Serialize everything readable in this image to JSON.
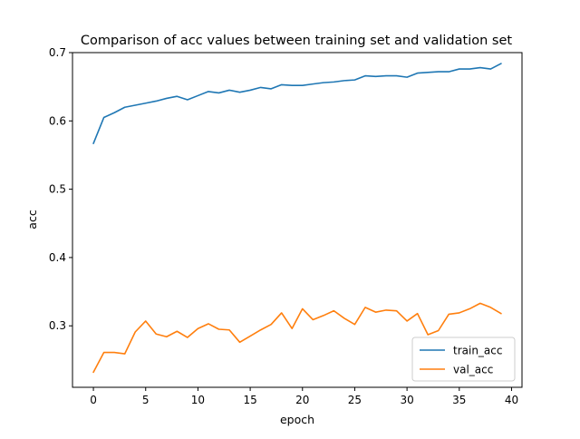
{
  "chart_data": {
    "type": "line",
    "title": "Comparison of acc values between training set and validation set",
    "xlabel": "epoch",
    "ylabel": "acc",
    "xlim": [
      -2,
      41
    ],
    "ylim": [
      0.21,
      0.7
    ],
    "xticks": [
      0,
      5,
      10,
      15,
      20,
      25,
      30,
      35,
      40
    ],
    "yticks": [
      0.3,
      0.4,
      0.5,
      0.6,
      0.7
    ],
    "grid": false,
    "legend_position": "bottom-right",
    "x": [
      0,
      1,
      2,
      3,
      4,
      5,
      6,
      7,
      8,
      9,
      10,
      11,
      12,
      13,
      14,
      15,
      16,
      17,
      18,
      19,
      20,
      21,
      22,
      23,
      24,
      25,
      26,
      27,
      28,
      29,
      30,
      31,
      32,
      33,
      34,
      35,
      36,
      37,
      38,
      39
    ],
    "series": [
      {
        "name": "train_acc",
        "color": "#1f77b4",
        "values": [
          0.567,
          0.605,
          0.612,
          0.62,
          0.623,
          0.626,
          0.629,
          0.633,
          0.636,
          0.631,
          0.637,
          0.643,
          0.641,
          0.645,
          0.642,
          0.645,
          0.649,
          0.647,
          0.653,
          0.652,
          0.652,
          0.654,
          0.656,
          0.657,
          0.659,
          0.66,
          0.666,
          0.665,
          0.666,
          0.666,
          0.664,
          0.67,
          0.671,
          0.672,
          0.672,
          0.676,
          0.676,
          0.678,
          0.676,
          0.684
        ]
      },
      {
        "name": "val_acc",
        "color": "#ff7f0e",
        "values": [
          0.232,
          0.261,
          0.261,
          0.259,
          0.291,
          0.307,
          0.288,
          0.284,
          0.292,
          0.283,
          0.296,
          0.303,
          0.295,
          0.294,
          0.276,
          0.285,
          0.294,
          0.302,
          0.319,
          0.296,
          0.325,
          0.309,
          0.315,
          0.322,
          0.311,
          0.302,
          0.327,
          0.32,
          0.323,
          0.322,
          0.307,
          0.318,
          0.287,
          0.293,
          0.317,
          0.319,
          0.325,
          0.333,
          0.327,
          0.318
        ]
      }
    ]
  }
}
